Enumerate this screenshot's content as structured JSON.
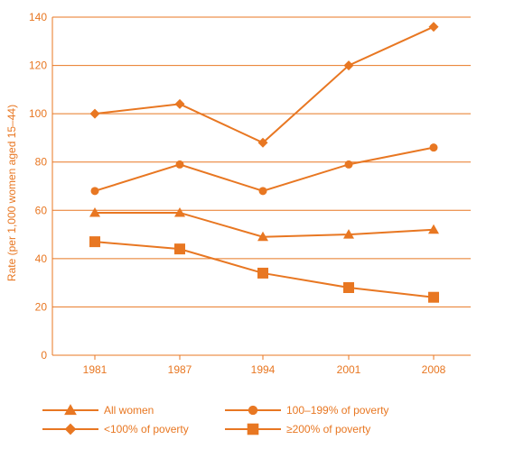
{
  "chart_data": {
    "type": "line",
    "title": "",
    "xlabel": "",
    "ylabel": "Rate (per 1,000 women aged 15–44)",
    "categories": [
      "1981",
      "1987",
      "1994",
      "2001",
      "2008"
    ],
    "ylim": [
      0,
      140
    ],
    "yticks": [
      0,
      20,
      40,
      60,
      80,
      100,
      120,
      140
    ],
    "grid": true,
    "legend_position": "bottom",
    "color": "#e87722",
    "series": [
      {
        "name": "<100% of poverty",
        "marker": "diamond",
        "values": [
          100,
          104,
          88,
          120,
          136
        ]
      },
      {
        "name": "100–199% of poverty",
        "marker": "circle",
        "values": [
          68,
          79,
          68,
          79,
          86
        ]
      },
      {
        "name": "All women",
        "marker": "triangle",
        "values": [
          59,
          59,
          49,
          50,
          52
        ]
      },
      {
        "name": "≥200% of poverty",
        "marker": "square",
        "values": [
          47,
          44,
          34,
          28,
          24
        ]
      }
    ],
    "legend_order": [
      "All women",
      "100–199% of poverty",
      "<100% of poverty",
      "≥200% of poverty"
    ]
  }
}
